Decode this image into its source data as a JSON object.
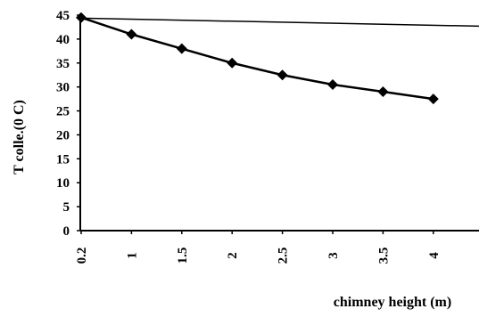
{
  "chart_data": {
    "type": "line",
    "xlabel": "chimney height (m)",
    "ylabel": "T colle.(0 C)",
    "x_tick_labels": [
      "0.2",
      "1",
      "1.5",
      "2",
      "2.5",
      "3",
      "3.5",
      "4"
    ],
    "y_ticks": [
      0,
      5,
      10,
      15,
      20,
      25,
      30,
      35,
      40,
      45
    ],
    "ylim": [
      0,
      45
    ],
    "grid": false,
    "legend": "none",
    "colors": {
      "line": "#000000",
      "axis": "#000000",
      "background": "#ffffff"
    },
    "series": [
      {
        "marker": "diamond",
        "x": [
          "0.2",
          "1",
          "1.5",
          "2",
          "2.5",
          "3",
          "3.5",
          "4"
        ],
        "values": [
          44.5,
          41,
          38,
          35,
          32.5,
          30.5,
          29,
          27.5
        ]
      }
    ],
    "reference_line": {
      "y": 44
    }
  }
}
